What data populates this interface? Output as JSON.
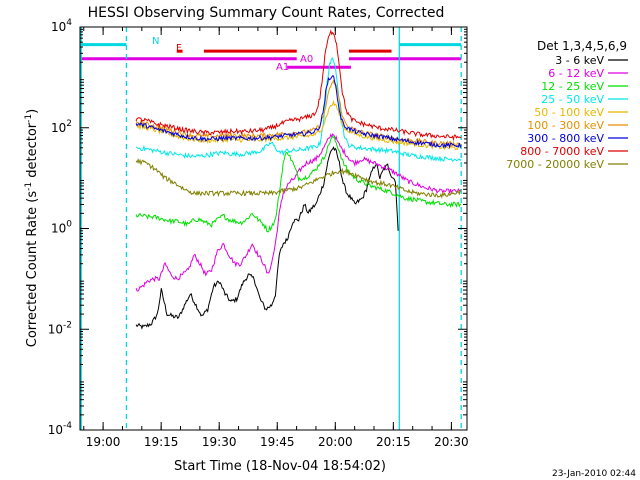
{
  "chart_data": {
    "type": "line",
    "title": "HESSI Observing Summary Count Rates, Corrected",
    "xlabel": "Start Time (18-Nov-04 18:54:02)",
    "ylabel_parts": [
      "Corrected Count Rate (s",
      "-1",
      " detector",
      "-1",
      ")"
    ],
    "x_units": "minutes after 18:54:02",
    "xlim": [
      0,
      100
    ],
    "ylim_log10": [
      -4,
      4
    ],
    "y_scale": "log",
    "x_ticks": [
      {
        "label": "19:00",
        "value": 5.97
      },
      {
        "label": "19:15",
        "value": 20.97
      },
      {
        "label": "19:30",
        "value": 35.97
      },
      {
        "label": "19:45",
        "value": 50.97
      },
      {
        "label": "20:00",
        "value": 65.97
      },
      {
        "label": "20:15",
        "value": 80.97
      },
      {
        "label": "20:30",
        "value": 95.97
      }
    ],
    "y_ticks": [
      {
        "base": "10",
        "exp": "-4",
        "value": -4
      },
      {
        "base": "10",
        "exp": "-2",
        "value": -2
      },
      {
        "base": "10",
        "exp": "0",
        "value": 0
      },
      {
        "base": "10",
        "exp": "2",
        "value": 2
      },
      {
        "base": "10",
        "exp": "4",
        "value": 4
      }
    ],
    "legend_title": "Det 1,3,4,5,6,9",
    "legend_position": "right, outside plot",
    "date_stamp": "23-Jan-2010 02:44",
    "vlines": [
      {
        "x": 0.3,
        "color": "#00d8e0",
        "style": "solid"
      },
      {
        "x": 12.0,
        "color": "#00d8e0",
        "style": "dashed"
      },
      {
        "x": 82.5,
        "color": "#00d8e0",
        "style": "solid"
      },
      {
        "x": 98.5,
        "color": "#00d8e0",
        "style": "dashed"
      }
    ],
    "flag_bars": [
      {
        "label": "N",
        "y": 3.65,
        "color": "#00d8e0",
        "segments": [
          [
            0.3,
            12.0
          ],
          [
            82.5,
            98.5
          ]
        ]
      },
      {
        "label": "F",
        "y": 3.52,
        "color": "#e00000",
        "segments": [
          [
            25.0,
            26.5
          ],
          [
            32.0,
            56.0
          ],
          [
            69.5,
            80.5
          ]
        ]
      },
      {
        "label": "A0",
        "y": 3.37,
        "color": "#e000e0",
        "segments": [
          [
            0.3,
            56.0
          ],
          [
            69.5,
            98.5
          ]
        ]
      },
      {
        "label": "A1",
        "y": 3.2,
        "color": "#e000e0",
        "segments": [
          [
            53.5,
            70.0
          ]
        ]
      }
    ],
    "series": [
      {
        "name": "3 - 6 keV",
        "color": "#000000",
        "x": [
          14.5,
          16.5,
          18.5,
          20.0,
          21.0,
          22.5,
          24.0,
          25.5,
          27.0,
          28.5,
          30.0,
          31.5,
          33.0,
          34.5,
          36.0,
          37.5,
          39.0,
          40.5,
          42.0,
          43.5,
          45.0,
          46.5,
          48.0,
          49.5,
          50.5,
          51.5,
          52.5,
          53.5,
          55.0,
          56.5,
          58.0,
          59.0,
          60.0,
          61.0,
          62.0,
          63.0,
          64.0,
          64.8,
          65.5,
          66.2,
          67.0,
          68.0,
          69.0,
          70.0,
          71.0,
          72.0,
          73.0,
          74.0,
          75.5,
          76.5,
          77.5,
          78.5,
          79.5,
          80.5,
          81.5,
          82.2
        ],
        "y": [
          0.012,
          0.011,
          0.013,
          0.02,
          0.06,
          0.02,
          0.018,
          0.017,
          0.03,
          0.05,
          0.03,
          0.018,
          0.025,
          0.07,
          0.09,
          0.05,
          0.035,
          0.04,
          0.08,
          0.12,
          0.1,
          0.04,
          0.025,
          0.03,
          0.05,
          0.3,
          0.5,
          0.6,
          1.4,
          1.5,
          3,
          2,
          2.6,
          3,
          5,
          8,
          20,
          35,
          40,
          33,
          20,
          8,
          5,
          4,
          3,
          3.5,
          4,
          6,
          14,
          20,
          10,
          15,
          18,
          11,
          9,
          0.9
        ]
      },
      {
        "name": "6 - 12 keV",
        "color": "#e000e0",
        "x": [
          14.5,
          16.0,
          17.5,
          19.0,
          20.5,
          22.0,
          23.5,
          25.0,
          26.5,
          28.0,
          29.5,
          31.0,
          32.5,
          34.0,
          35.5,
          37.0,
          38.5,
          40.0,
          41.5,
          43.0,
          44.5,
          46.0,
          47.5,
          48.5,
          49.5,
          50.5,
          51.5,
          52.5,
          54.0,
          55.5,
          57.0,
          58.5,
          60.0,
          61.0,
          62.0,
          63.0,
          64.0,
          64.8,
          65.5,
          66.2,
          67.0,
          68.0,
          69.0,
          70.0,
          71.0,
          72.0,
          73.0,
          74.5,
          76.0,
          77.5,
          79.0,
          80.5,
          82.0,
          83.5,
          85.0,
          87.0,
          89.0,
          91.0,
          93.0,
          95.0,
          97.0,
          98.5
        ],
        "y": [
          0.06,
          0.07,
          0.09,
          0.1,
          0.1,
          0.2,
          0.12,
          0.1,
          0.12,
          0.15,
          0.3,
          0.2,
          0.12,
          0.15,
          0.35,
          0.5,
          0.3,
          0.2,
          0.2,
          0.3,
          0.5,
          0.3,
          0.2,
          0.12,
          0.2,
          0.5,
          2,
          5,
          8,
          10,
          15,
          20,
          22,
          24,
          30,
          40,
          55,
          70,
          75,
          60,
          45,
          35,
          28,
          22,
          20,
          22,
          24,
          22,
          20,
          18,
          16,
          14,
          12,
          10,
          8.5,
          7.5,
          6.5,
          6,
          5.5,
          5.5,
          5.5,
          5.5
        ]
      },
      {
        "name": "12 - 25 keV",
        "color": "#00e000",
        "x": [
          14.5,
          16.0,
          17.5,
          19.0,
          20.5,
          22.0,
          23.5,
          25.0,
          26.5,
          28.0,
          29.5,
          31.0,
          32.5,
          34.0,
          35.5,
          37.0,
          38.5,
          40.0,
          41.5,
          43.0,
          44.5,
          46.0,
          47.5,
          48.5,
          49.5,
          50.5,
          51.5,
          52.5,
          53.5,
          55.0,
          56.5,
          58.0,
          59.5,
          61.0,
          62.0,
          63.0,
          64.0,
          64.8,
          65.5,
          66.2,
          67.0,
          68.0,
          69.0,
          70.0,
          71.0,
          72.0,
          73.5,
          75.0,
          76.5,
          78.0,
          79.5,
          81.0,
          82.5,
          84.0,
          86.0,
          88.0,
          90.0,
          92.0,
          94.0,
          96.0,
          98.5
        ],
        "y": [
          1.8,
          1.8,
          1.7,
          1.7,
          1.6,
          1.5,
          1.4,
          1.4,
          1.3,
          1.2,
          1.5,
          1.5,
          1.3,
          1.2,
          1.5,
          1.8,
          1.5,
          1.4,
          1.3,
          1.5,
          2,
          1.5,
          1.2,
          0.9,
          1.1,
          1.5,
          5,
          20,
          35,
          20,
          10,
          10,
          12,
          15,
          20,
          25,
          40,
          60,
          65,
          50,
          35,
          20,
          15,
          12,
          10,
          9,
          8,
          7,
          6.5,
          6,
          5.5,
          5,
          4.5,
          4,
          3.8,
          3.5,
          3.3,
          3.2,
          3,
          3,
          3
        ]
      },
      {
        "name": "25 - 50 keV",
        "color": "#00e8e8",
        "x": [
          14.5,
          17.0,
          19.5,
          22.0,
          24.5,
          27.0,
          29.5,
          32.0,
          34.5,
          37.0,
          39.5,
          42.0,
          44.5,
          47.0,
          48.5,
          49.5,
          50.5,
          51.5,
          52.5,
          53.5,
          55.0,
          56.5,
          58.0,
          59.5,
          61.0,
          62.0,
          63.0,
          63.8,
          64.5,
          65.2,
          66.0,
          66.8,
          67.5,
          68.5,
          69.5,
          70.5,
          72.0,
          73.5,
          75.0,
          76.5,
          78.0,
          79.5,
          81.0,
          82.5,
          84.0,
          86.0,
          88.0,
          90.0,
          92.0,
          94.0,
          96.0,
          98.5
        ],
        "y": [
          40,
          38,
          35,
          32,
          30,
          28,
          27,
          28,
          30,
          32,
          30,
          30,
          32,
          35,
          45,
          50,
          40,
          33,
          32,
          35,
          35,
          36,
          38,
          40,
          42,
          48,
          150,
          700,
          1900,
          2200,
          1700,
          500,
          150,
          60,
          45,
          42,
          40,
          39,
          38,
          37,
          36,
          35,
          34,
          32,
          30,
          28,
          27,
          26,
          25,
          24,
          24,
          24
        ]
      },
      {
        "name": "50 - 100 keV",
        "color": "#e8b800",
        "x": [
          14.5,
          17.0,
          19.5,
          22.0,
          24.5,
          27.0,
          29.5,
          32.0,
          34.5,
          37.0,
          39.5,
          42.0,
          44.5,
          47.0,
          49.5,
          52.0,
          54.5,
          57.0,
          59.5,
          61.0,
          62.0,
          63.0,
          64.0,
          64.8,
          65.5,
          66.2,
          67.0,
          68.0,
          69.0,
          70.5,
          72.0,
          74.0,
          76.0,
          78.0,
          80.0,
          82.0,
          84.0,
          86.0,
          88.0,
          90.0,
          92.0,
          94.0,
          96.0,
          98.5
        ],
        "y": [
          110,
          100,
          90,
          80,
          70,
          62,
          58,
          56,
          56,
          58,
          58,
          57,
          57,
          58,
          60,
          62,
          64,
          66,
          70,
          75,
          85,
          120,
          200,
          280,
          300,
          280,
          180,
          110,
          90,
          80,
          72,
          66,
          62,
          58,
          55,
          52,
          50,
          48,
          46,
          44,
          42,
          41,
          40,
          40
        ]
      },
      {
        "name": "100 - 300 keV",
        "color": "#e89000",
        "x": [
          14.5,
          17.0,
          19.5,
          22.0,
          24.5,
          27.0,
          29.5,
          32.0,
          34.5,
          37.0,
          39.5,
          42.0,
          44.5,
          47.0,
          49.5,
          52.0,
          54.5,
          57.0,
          59.5,
          61.0,
          62.0,
          63.0,
          64.0,
          64.8,
          65.5,
          66.2,
          67.0,
          68.0,
          69.0,
          70.5,
          72.0,
          74.0,
          76.0,
          78.0,
          80.0,
          82.0,
          84.0,
          86.0,
          88.0,
          90.0,
          92.0,
          94.0,
          96.0,
          98.5
        ],
        "y": [
          130,
          120,
          105,
          95,
          85,
          75,
          70,
          68,
          68,
          70,
          70,
          69,
          69,
          70,
          72,
          75,
          78,
          80,
          85,
          95,
          110,
          180,
          400,
          700,
          800,
          700,
          350,
          150,
          110,
          95,
          85,
          78,
          72,
          68,
          64,
          60,
          58,
          56,
          54,
          52,
          50,
          49,
          48,
          48
        ]
      },
      {
        "name": "300 - 800 keV",
        "color": "#0000e0",
        "x": [
          14.5,
          17.0,
          19.5,
          22.0,
          24.5,
          27.0,
          29.5,
          32.0,
          34.5,
          37.0,
          39.5,
          42.0,
          44.5,
          47.0,
          49.5,
          52.0,
          54.5,
          57.0,
          59.5,
          61.0,
          62.0,
          62.8,
          63.5,
          64.2,
          65.0,
          65.8,
          66.5,
          67.2,
          68.0,
          69.0,
          70.5,
          72.0,
          74.0,
          76.0,
          78.0,
          80.0,
          82.0,
          84.0,
          86.0,
          88.0,
          90.0,
          92.0,
          94.0,
          96.0,
          98.5
        ],
        "y": [
          120,
          110,
          95,
          85,
          76,
          68,
          63,
          60,
          60,
          62,
          62,
          62,
          62,
          63,
          65,
          68,
          72,
          75,
          80,
          88,
          110,
          200,
          500,
          900,
          1100,
          900,
          400,
          180,
          120,
          100,
          88,
          80,
          74,
          70,
          66,
          62,
          58,
          55,
          52,
          50,
          48,
          46,
          45,
          45,
          45
        ]
      },
      {
        "name": "800 - 7000 keV",
        "color": "#e00000",
        "x": [
          14.5,
          17.0,
          19.5,
          22.0,
          24.5,
          27.0,
          29.5,
          32.0,
          34.5,
          37.0,
          39.5,
          42.0,
          44.5,
          47.0,
          49.5,
          52.0,
          54.5,
          57.0,
          59.5,
          61.0,
          62.0,
          62.8,
          63.5,
          64.2,
          64.8,
          65.3,
          65.8,
          66.3,
          67.0,
          67.8,
          68.8,
          70.0,
          71.5,
          73.0,
          75.0,
          77.0,
          79.0,
          81.0,
          83.0,
          85.0,
          87.0,
          89.0,
          91.0,
          93.0,
          95.0,
          97.0,
          98.5
        ],
        "y": [
          150,
          140,
          120,
          110,
          100,
          90,
          85,
          80,
          80,
          82,
          85,
          84,
          86,
          90,
          100,
          120,
          140,
          150,
          170,
          200,
          400,
          1200,
          3500,
          6000,
          7800,
          8000,
          7000,
          4500,
          1800,
          500,
          220,
          150,
          130,
          120,
          110,
          100,
          95,
          90,
          85,
          80,
          75,
          72,
          70,
          68,
          66,
          65,
          65
        ]
      },
      {
        "name": "7000 - 20000 keV",
        "color": "#808000",
        "x": [
          14.5,
          17.0,
          19.5,
          22.0,
          24.5,
          27.0,
          29.5,
          32.0,
          34.5,
          37.0,
          39.5,
          42.0,
          44.5,
          47.0,
          49.5,
          52.0,
          54.5,
          57.0,
          59.5,
          62.0,
          64.5,
          67.0,
          69.5,
          72.0,
          74.5,
          77.0,
          79.5,
          82.0,
          84.5,
          87.0,
          89.5,
          92.0,
          94.5,
          96.5,
          98.5
        ],
        "y": [
          22,
          20,
          15,
          10,
          8,
          6,
          5,
          5,
          5,
          5,
          5,
          5,
          5,
          5,
          5,
          5.5,
          6,
          6.5,
          8,
          10,
          12,
          14,
          13,
          11,
          9,
          8,
          7.5,
          6.5,
          5.5,
          5,
          4.8,
          4.6,
          4.6,
          5,
          5.5
        ]
      }
    ]
  }
}
